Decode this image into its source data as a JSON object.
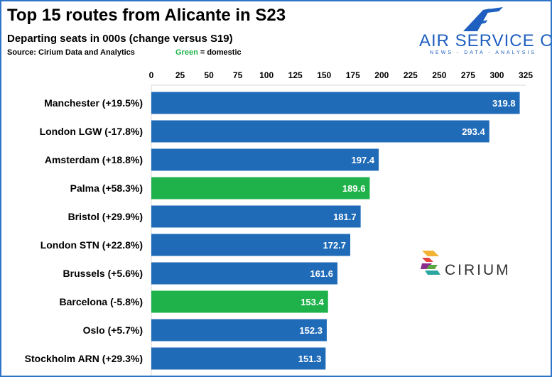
{
  "header": {
    "title": "Top 15 routes from Alicante in S23",
    "subtitle": "Departing seats in 000s (change versus S19)",
    "source": "Source: Cirium Data and Analytics",
    "legend_green_word": "Green",
    "legend_rest": " = domestic"
  },
  "logo": {
    "name": "AIR SERVICE ONE",
    "tagline": "NEWS - DATA - ANALYSIS",
    "color": "#1f5fbf"
  },
  "cirium_logo": {
    "name": "CIRIUM"
  },
  "colors": {
    "international": "#1f6bb8",
    "domestic": "#1fb24a",
    "frame": "#2e75c9"
  },
  "chart_data": {
    "type": "bar",
    "orientation": "horizontal",
    "title": "Top 15 routes from Alicante in S23",
    "subtitle": "Departing seats in 000s (change versus S19)",
    "xlim": [
      0,
      325
    ],
    "xticks": [
      0,
      25,
      50,
      75,
      100,
      125,
      150,
      175,
      200,
      225,
      250,
      275,
      300,
      325
    ],
    "xtick_labels": [
      "0",
      "25",
      "50",
      "75",
      "100",
      "125",
      "150",
      "175",
      "200",
      "225",
      "250",
      "275",
      "300",
      "325"
    ],
    "axis_position": "top",
    "grid": false,
    "categories": [
      "Manchester (+19.5%)",
      "London LGW (-17.8%)",
      "Amsterdam (+18.8%)",
      "Palma (+58.3%)",
      "Bristol (+29.9%)",
      "London STN (+22.8%)",
      "Brussels (+5.6%)",
      "Barcelona (-5.8%)",
      "Oslo (+5.7%)",
      "Stockholm ARN (+29.3%)"
    ],
    "values": [
      319.8,
      293.4,
      197.4,
      189.6,
      181.7,
      172.7,
      161.6,
      153.4,
      152.3,
      151.3
    ],
    "value_labels": [
      "319.8",
      "293.4",
      "197.4",
      "189.6",
      "181.7",
      "172.7",
      "161.6",
      "153.4",
      "152.3",
      "151.3"
    ],
    "domestic": [
      false,
      false,
      false,
      true,
      false,
      false,
      false,
      true,
      false,
      false
    ]
  }
}
